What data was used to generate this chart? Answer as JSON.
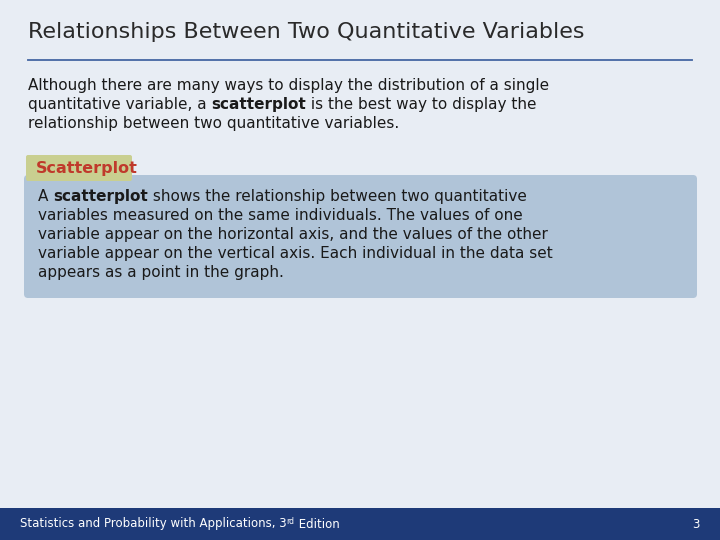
{
  "title": "Relationships Between Two Quantitative Variables",
  "title_fontsize": 16,
  "title_color": "#2a2a2a",
  "main_bg": "#e8edf4",
  "intro_line1": "Although there are many ways to display the distribution of a single",
  "intro_line2_pre": "quantitative variable, a ",
  "intro_line2_bold": "scatterplot",
  "intro_line2_post": " is the best way to display the",
  "intro_line3": "relationship between two quantitative variables.",
  "definition_label": "Scatterplot",
  "definition_label_color": "#c0392b",
  "definition_label_bg": "#c9cf90",
  "definition_box_bg": "#b0c4d8",
  "def_line1_pre": "A ",
  "def_line1_bold": "scatterplot",
  "def_line1_post": " shows the relationship between two quantitative",
  "def_line2": "variables measured on the same individuals. The values of one",
  "def_line3": "variable appear on the horizontal axis, and the values of the other",
  "def_line4": "variable appear on the vertical axis. Each individual in the data set",
  "def_line5": "appears as a point in the graph.",
  "footer_bg": "#1e3a78",
  "footer_left": "Statistics and Probability with Applications, 3",
  "footer_sup": "rd",
  "footer_right": " Edition",
  "footer_page": "3",
  "footer_color": "#ffffff",
  "separator_color": "#5070a8",
  "text_color": "#1a1a1a",
  "body_fontsize": 11,
  "label_fontsize": 11.5
}
